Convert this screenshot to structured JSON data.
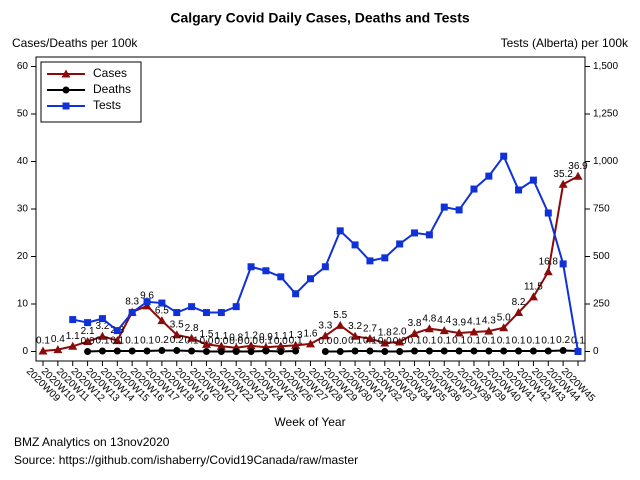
{
  "chart_data": {
    "type": "line",
    "title": "Calgary Covid Daily Cases, Deaths and Tests",
    "y_label": "Cases/Deaths per 100k",
    "y2_label": "Tests (Alberta) per 100k",
    "x_label": "Week of Year",
    "categories": [
      "2020W09",
      "2020W10",
      "2020W11",
      "2020W12",
      "2020W13",
      "2020W14",
      "2020W15",
      "2020W16",
      "2020W17",
      "2020W18",
      "2020W19",
      "2020W20",
      "2020W21",
      "2020W22",
      "2020W23",
      "2020W24",
      "2020W25",
      "2020W26",
      "2020W27",
      "2020W28",
      "2020W29",
      "2020W30",
      "2020W31",
      "2020W32",
      "2020W33",
      "2020W34",
      "2020W35",
      "2020W36",
      "2020W37",
      "2020W38",
      "2020W39",
      "2020W40",
      "2020W41",
      "2020W42",
      "2020W43",
      "2020W44",
      "2020W45"
    ],
    "series": [
      {
        "name": "Cases",
        "color": "#8b0a0a",
        "marker": "triangle",
        "values": [
          0.1,
          0.4,
          1.1,
          2.1,
          3.2,
          2.3,
          8.3,
          9.6,
          6.5,
          3.5,
          2.8,
          1.5,
          1.1,
          0.8,
          1.2,
          0.9,
          1.1,
          1.3,
          1.6,
          3.3,
          5.5,
          3.2,
          2.7,
          1.8,
          2.0,
          3.8,
          4.8,
          4.4,
          3.9,
          4.1,
          4.3,
          5.0,
          8.2,
          11.5,
          16.8,
          35.2,
          36.9
        ],
        "value_labels": [
          "0.1",
          "0.4",
          "1.1",
          "2.1",
          "3.2",
          "2.3",
          "8.3",
          "9.6",
          "6.5",
          "3.5",
          "2.8",
          "1.5",
          "1.1",
          "0.8",
          "1.2",
          "0.9",
          "1.1",
          "1.3",
          "1.6",
          "3.3",
          "5.5",
          "3.2",
          "2.7",
          "1.8",
          "2.0",
          "3.8",
          "4.8",
          "4.4",
          "3.9",
          "4.1",
          "4.3",
          "5.0",
          "8.2",
          "11.5",
          "16.8",
          "35.2",
          "36.9"
        ]
      },
      {
        "name": "Deaths",
        "color": "#000000",
        "marker": "circle",
        "values": [
          null,
          null,
          null,
          0.0,
          0.1,
          0.1,
          0.1,
          0.1,
          0.2,
          0.2,
          0.1,
          0.0,
          0.0,
          0.0,
          0.0,
          0.1,
          0.0,
          0.1,
          null,
          0.0,
          0.0,
          0.1,
          0.1,
          0.0,
          0.0,
          0.1,
          0.1,
          0.1,
          0.1,
          0.1,
          0.1,
          0.1,
          0.1,
          0.1,
          0.1,
          0.2,
          0.1
        ],
        "value_labels": [
          null,
          null,
          null,
          "0.0",
          "0.1",
          "0.1",
          "0.1",
          "0.1",
          "0.2",
          "0.2",
          "0.1",
          "0.0",
          "0.0",
          "0.0",
          "0.0",
          "0.1",
          "0.0",
          "0.1",
          null,
          "0.0",
          "0.0",
          "0.1",
          "0.1",
          "0.0",
          "0.0",
          "0.1",
          "0.1",
          "0.1",
          "0.1",
          "0.1",
          "0.1",
          "0.1",
          "0.1",
          "0.1",
          "0.1",
          "0.2",
          "0.1"
        ]
      },
      {
        "name": "Tests",
        "color": "#1030d8",
        "marker": "square",
        "axis": "y2",
        "values": [
          null,
          null,
          168,
          152,
          173,
          110,
          205,
          262,
          255,
          205,
          236,
          205,
          205,
          236,
          446,
          425,
          393,
          304,
          383,
          446,
          635,
          561,
          477,
          493,
          566,
          624,
          614,
          760,
          745,
          855,
          923,
          1028,
          850,
          902,
          729,
          461,
          0
        ]
      }
    ],
    "ylim": [
      -2,
      62
    ],
    "yticks": [
      0,
      10,
      20,
      30,
      40,
      50,
      60
    ],
    "y2lim": [
      -50,
      1550
    ],
    "y2ticks": [
      0,
      250,
      500,
      750,
      {
        "value": 1000,
        "label": "1,000"
      },
      {
        "value": 1250,
        "label": "1,250"
      },
      {
        "value": 1500,
        "label": "1,500"
      }
    ],
    "legend": "upper left",
    "grid": false,
    "notes": [
      "BMZ Analytics on 13nov2020",
      "Source: https://github.com/ishaberry/Covid19Canada/raw/master"
    ]
  }
}
